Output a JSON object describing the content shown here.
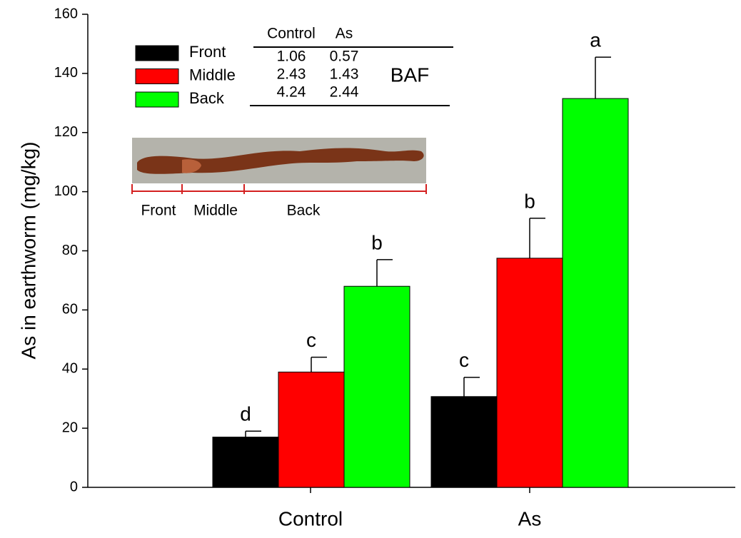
{
  "chart_data": {
    "type": "bar",
    "ylabel": "As in earthworm (mg/kg)",
    "categories": [
      "Control",
      "As"
    ],
    "series": [
      {
        "name": "Front",
        "color": "#000000",
        "values": [
          17,
          30.7
        ],
        "errors": [
          2,
          6.5
        ],
        "letters": [
          "d",
          "c"
        ]
      },
      {
        "name": "Middle",
        "color": "#ff0000",
        "values": [
          39,
          77.5
        ],
        "errors": [
          5,
          13.5
        ],
        "letters": [
          "c",
          "b"
        ]
      },
      {
        "name": "Back",
        "color": "#00ff00",
        "values": [
          68,
          131.5
        ],
        "errors": [
          9,
          14
        ],
        "letters": [
          "b",
          "a"
        ]
      }
    ],
    "ylim": [
      0,
      160
    ],
    "yticks": [
      0,
      20,
      40,
      60,
      80,
      100,
      120,
      140,
      160
    ],
    "baf_table": {
      "label": "BAF",
      "columns": [
        "Control",
        "As"
      ],
      "rows": [
        [
          1.06,
          0.57
        ],
        [
          2.43,
          1.43
        ],
        [
          4.24,
          2.44
        ]
      ]
    },
    "worm_labels": [
      "Front",
      "Middle",
      "Back"
    ]
  }
}
